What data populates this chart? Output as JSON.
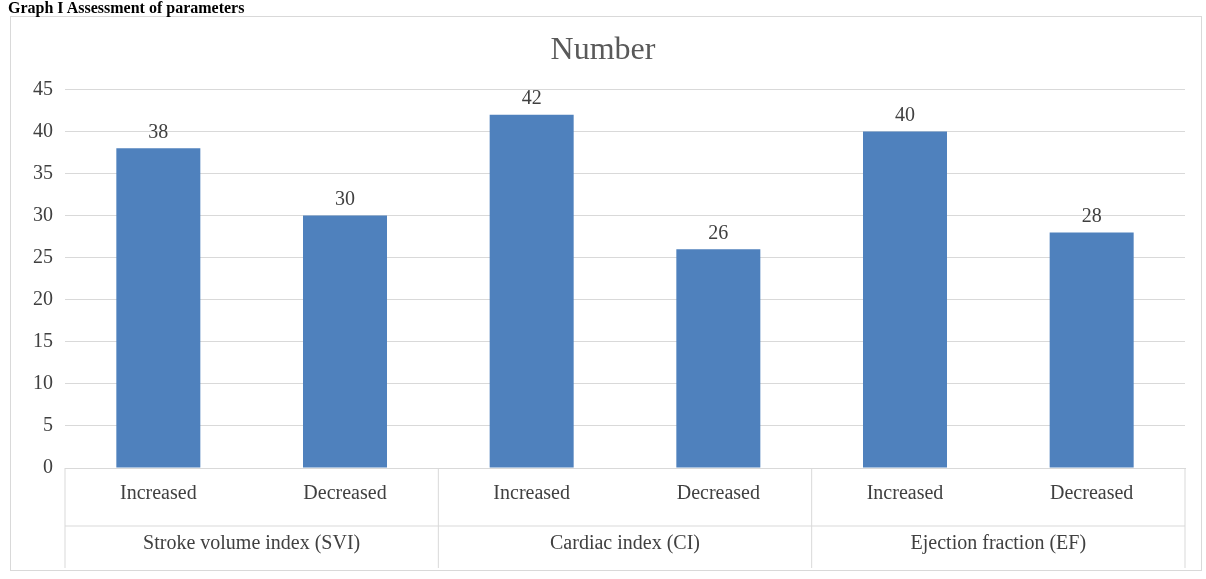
{
  "chart_data": {
    "type": "bar",
    "title": "Number",
    "categories": [
      "Increased",
      "Decreased",
      "Increased",
      "Decreased",
      "Increased",
      "Decreased"
    ],
    "values": [
      38,
      30,
      42,
      26,
      40,
      28
    ],
    "color": "#4f81bd",
    "ylim": [
      0,
      45
    ],
    "yticks": [
      0,
      5,
      10,
      15,
      20,
      25,
      30,
      35,
      40,
      45
    ],
    "grid": "y",
    "data_labels": true,
    "legend": false,
    "annotations": [
      "Graph I Assessment of parameters",
      "Stroke volume index (SVI)",
      "Cardiac index (CI)",
      "Ejection fraction (EF)"
    ]
  }
}
